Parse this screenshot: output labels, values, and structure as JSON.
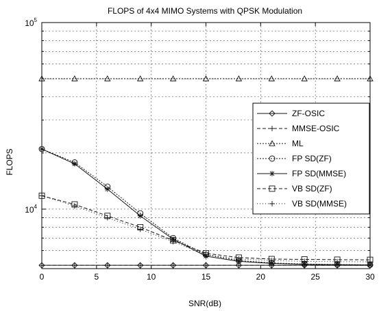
{
  "chart_data": {
    "type": "line",
    "title": "FLOPS of 4x4 MIMO Systems with QPSK Modulation",
    "xlabel": "SNR(dB)",
    "ylabel": "FLOPS",
    "xlim": [
      0,
      30
    ],
    "ylim": [
      4800,
      100000
    ],
    "yscale": "log",
    "grid": true,
    "legend_position": "right",
    "x_ticks": [
      0,
      5,
      10,
      15,
      20,
      25,
      30
    ],
    "x_tick_labels": [
      "0",
      "5",
      "10",
      "15",
      "20",
      "25",
      "30"
    ],
    "y_major_ticks": [
      {
        "value": 10000,
        "base": "10",
        "exp": "4"
      },
      {
        "value": 100000,
        "base": "10",
        "exp": "5"
      }
    ],
    "y_minor_ticks": [
      5000,
      6000,
      7000,
      8000,
      9000,
      20000,
      30000,
      40000,
      50000,
      60000,
      70000,
      80000,
      90000
    ],
    "x": [
      0,
      3,
      6,
      9,
      12,
      15,
      18,
      21,
      24,
      27,
      30
    ],
    "series": [
      {
        "name": "ZF-OSIC",
        "marker": "diamond",
        "dash": "",
        "values": [
          5000,
          5000,
          5000,
          5000,
          5000,
          5000,
          5000,
          5000,
          5000,
          5000,
          5000
        ]
      },
      {
        "name": "MMSE-OSIC",
        "marker": "plus",
        "dash": "5,3",
        "values": [
          5000,
          5000,
          5000,
          5000,
          5000,
          5000,
          5000,
          5000,
          5000,
          5000,
          5000
        ]
      },
      {
        "name": "ML",
        "marker": "triangle",
        "dash": "2,2",
        "values": [
          50000,
          50000,
          50000,
          50000,
          50000,
          50000,
          50000,
          50000,
          50000,
          50000,
          50000
        ]
      },
      {
        "name": "FP SD(ZF)",
        "marker": "circle",
        "dash": "2,2",
        "values": [
          21000,
          17800,
          13200,
          9500,
          7000,
          5700,
          5300,
          5150,
          5080,
          5050,
          5030
        ]
      },
      {
        "name": "FP SD(MMSE)",
        "marker": "asterisk",
        "dash": "",
        "values": [
          21000,
          17500,
          12800,
          9200,
          6900,
          5600,
          5250,
          5120,
          5060,
          5040,
          5020
        ]
      },
      {
        "name": "VB SD(ZF)",
        "marker": "square",
        "dash": "5,3",
        "values": [
          11800,
          10600,
          9200,
          8000,
          6800,
          5800,
          5500,
          5400,
          5380,
          5360,
          5350
        ]
      },
      {
        "name": "VB SD(MMSE)",
        "marker": "plus",
        "dash": "1,3",
        "values": [
          11800,
          10400,
          9000,
          7800,
          6700,
          5700,
          5400,
          5300,
          5250,
          5230,
          5220
        ]
      }
    ]
  }
}
